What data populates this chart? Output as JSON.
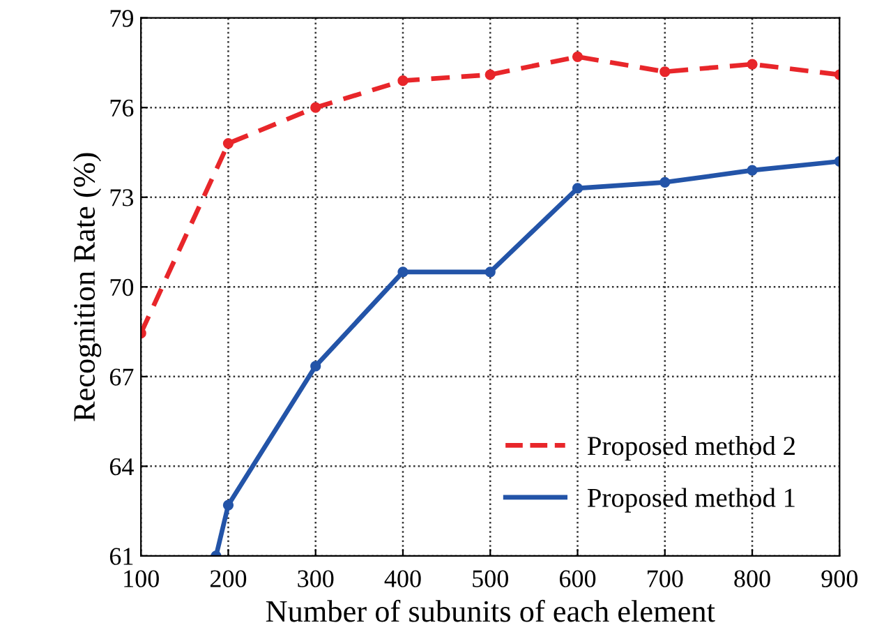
{
  "chart_data": {
    "type": "line",
    "xlabel": "Number of subunits of each element",
    "ylabel": "Recognition Rate (%)",
    "x": [
      100,
      200,
      300,
      400,
      500,
      600,
      700,
      800,
      900
    ],
    "series": [
      {
        "name": "Proposed method 2",
        "color": "#e8262a",
        "line_style": "dashed",
        "values": [
          68.45,
          74.8,
          76.0,
          76.9,
          77.1,
          77.7,
          77.2,
          77.45,
          77.1
        ]
      },
      {
        "name": "Proposed method 1",
        "color": "#2354a8",
        "line_style": "solid",
        "x": [
          186,
          200,
          300,
          400,
          500,
          600,
          700,
          800,
          900
        ],
        "values": [
          61,
          62.7,
          67.35,
          70.5,
          70.5,
          73.3,
          73.5,
          73.9,
          74.2
        ]
      }
    ],
    "xlim": [
      100,
      900
    ],
    "ylim": [
      61,
      79
    ],
    "xticks": [
      100,
      200,
      300,
      400,
      500,
      600,
      700,
      800,
      900
    ],
    "yticks": [
      61,
      64,
      67,
      70,
      73,
      76,
      79
    ],
    "grid": true,
    "legend": "bottom right",
    "marker": "circle"
  }
}
